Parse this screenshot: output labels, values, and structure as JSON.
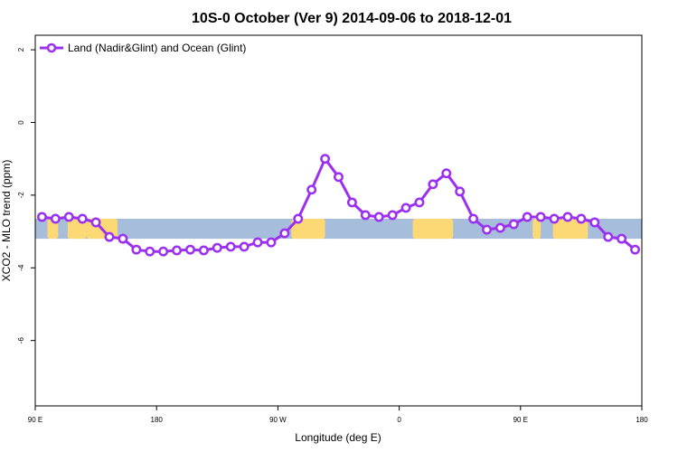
{
  "chart_data": {
    "type": "line",
    "title": "10S-0 October (Ver 9)   2014-09-06 to 2018-12-01",
    "xlabel": "Longitude (deg E)",
    "ylabel": "XCO2 - MLO trend (ppm)",
    "xlim": [
      90,
      540
    ],
    "ylim": [
      -7.8,
      2.4
    ],
    "x_ticks": [
      {
        "value": 90,
        "label": "90 E"
      },
      {
        "value": 180,
        "label": "180"
      },
      {
        "value": 270,
        "label": "90 W"
      },
      {
        "value": 360,
        "label": "0"
      },
      {
        "value": 450,
        "label": "90 E"
      },
      {
        "value": 540,
        "label": "180"
      }
    ],
    "y_ticks": [
      {
        "value": 2,
        "label": "2"
      },
      {
        "value": 0,
        "label": "0"
      },
      {
        "value": -2,
        "label": "-2"
      },
      {
        "value": -4,
        "label": "-4"
      },
      {
        "value": -6,
        "label": "-6"
      }
    ],
    "grid": false,
    "legend_position": "top-left",
    "map_strip": {
      "y_range": [
        -3.2,
        -2.65
      ],
      "ocean_color": "#a6bddb",
      "land_color": "#fdd976",
      "land_x_ranges": [
        [
          99,
          107
        ],
        [
          114,
          128
        ],
        [
          128,
          151
        ],
        [
          280,
          305
        ],
        [
          370,
          400
        ],
        [
          459,
          465
        ],
        [
          474,
          500
        ]
      ]
    },
    "series": [
      {
        "name": "Land (Nadir&Glint) and Ocean (Glint)",
        "color": "#9b30f0",
        "x": [
          95,
          105,
          115,
          125,
          135,
          145,
          155,
          165,
          175,
          185,
          195,
          205,
          215,
          225,
          235,
          245,
          255,
          265,
          275,
          285,
          295,
          305,
          315,
          325,
          335,
          345,
          355,
          365,
          375,
          385,
          395,
          405,
          415,
          425,
          435,
          445,
          455,
          465,
          475,
          485,
          495,
          505,
          515,
          525,
          535
        ],
        "y": [
          -2.6,
          -2.65,
          -2.6,
          -2.65,
          -2.75,
          -3.15,
          -3.2,
          -3.5,
          -3.55,
          -3.55,
          -3.52,
          -3.5,
          -3.52,
          -3.45,
          -3.42,
          -3.42,
          -3.3,
          -3.3,
          -3.05,
          -2.65,
          -1.85,
          -1.0,
          -1.5,
          -2.2,
          -2.55,
          -2.6,
          -2.55,
          -2.35,
          -2.2,
          -1.7,
          -1.4,
          -1.9,
          -2.65,
          -2.95,
          -2.9,
          -2.8,
          -2.6,
          -2.6,
          -2.65,
          -2.6,
          -2.65,
          -2.75,
          -3.15,
          -3.2,
          -3.5
        ]
      }
    ]
  }
}
